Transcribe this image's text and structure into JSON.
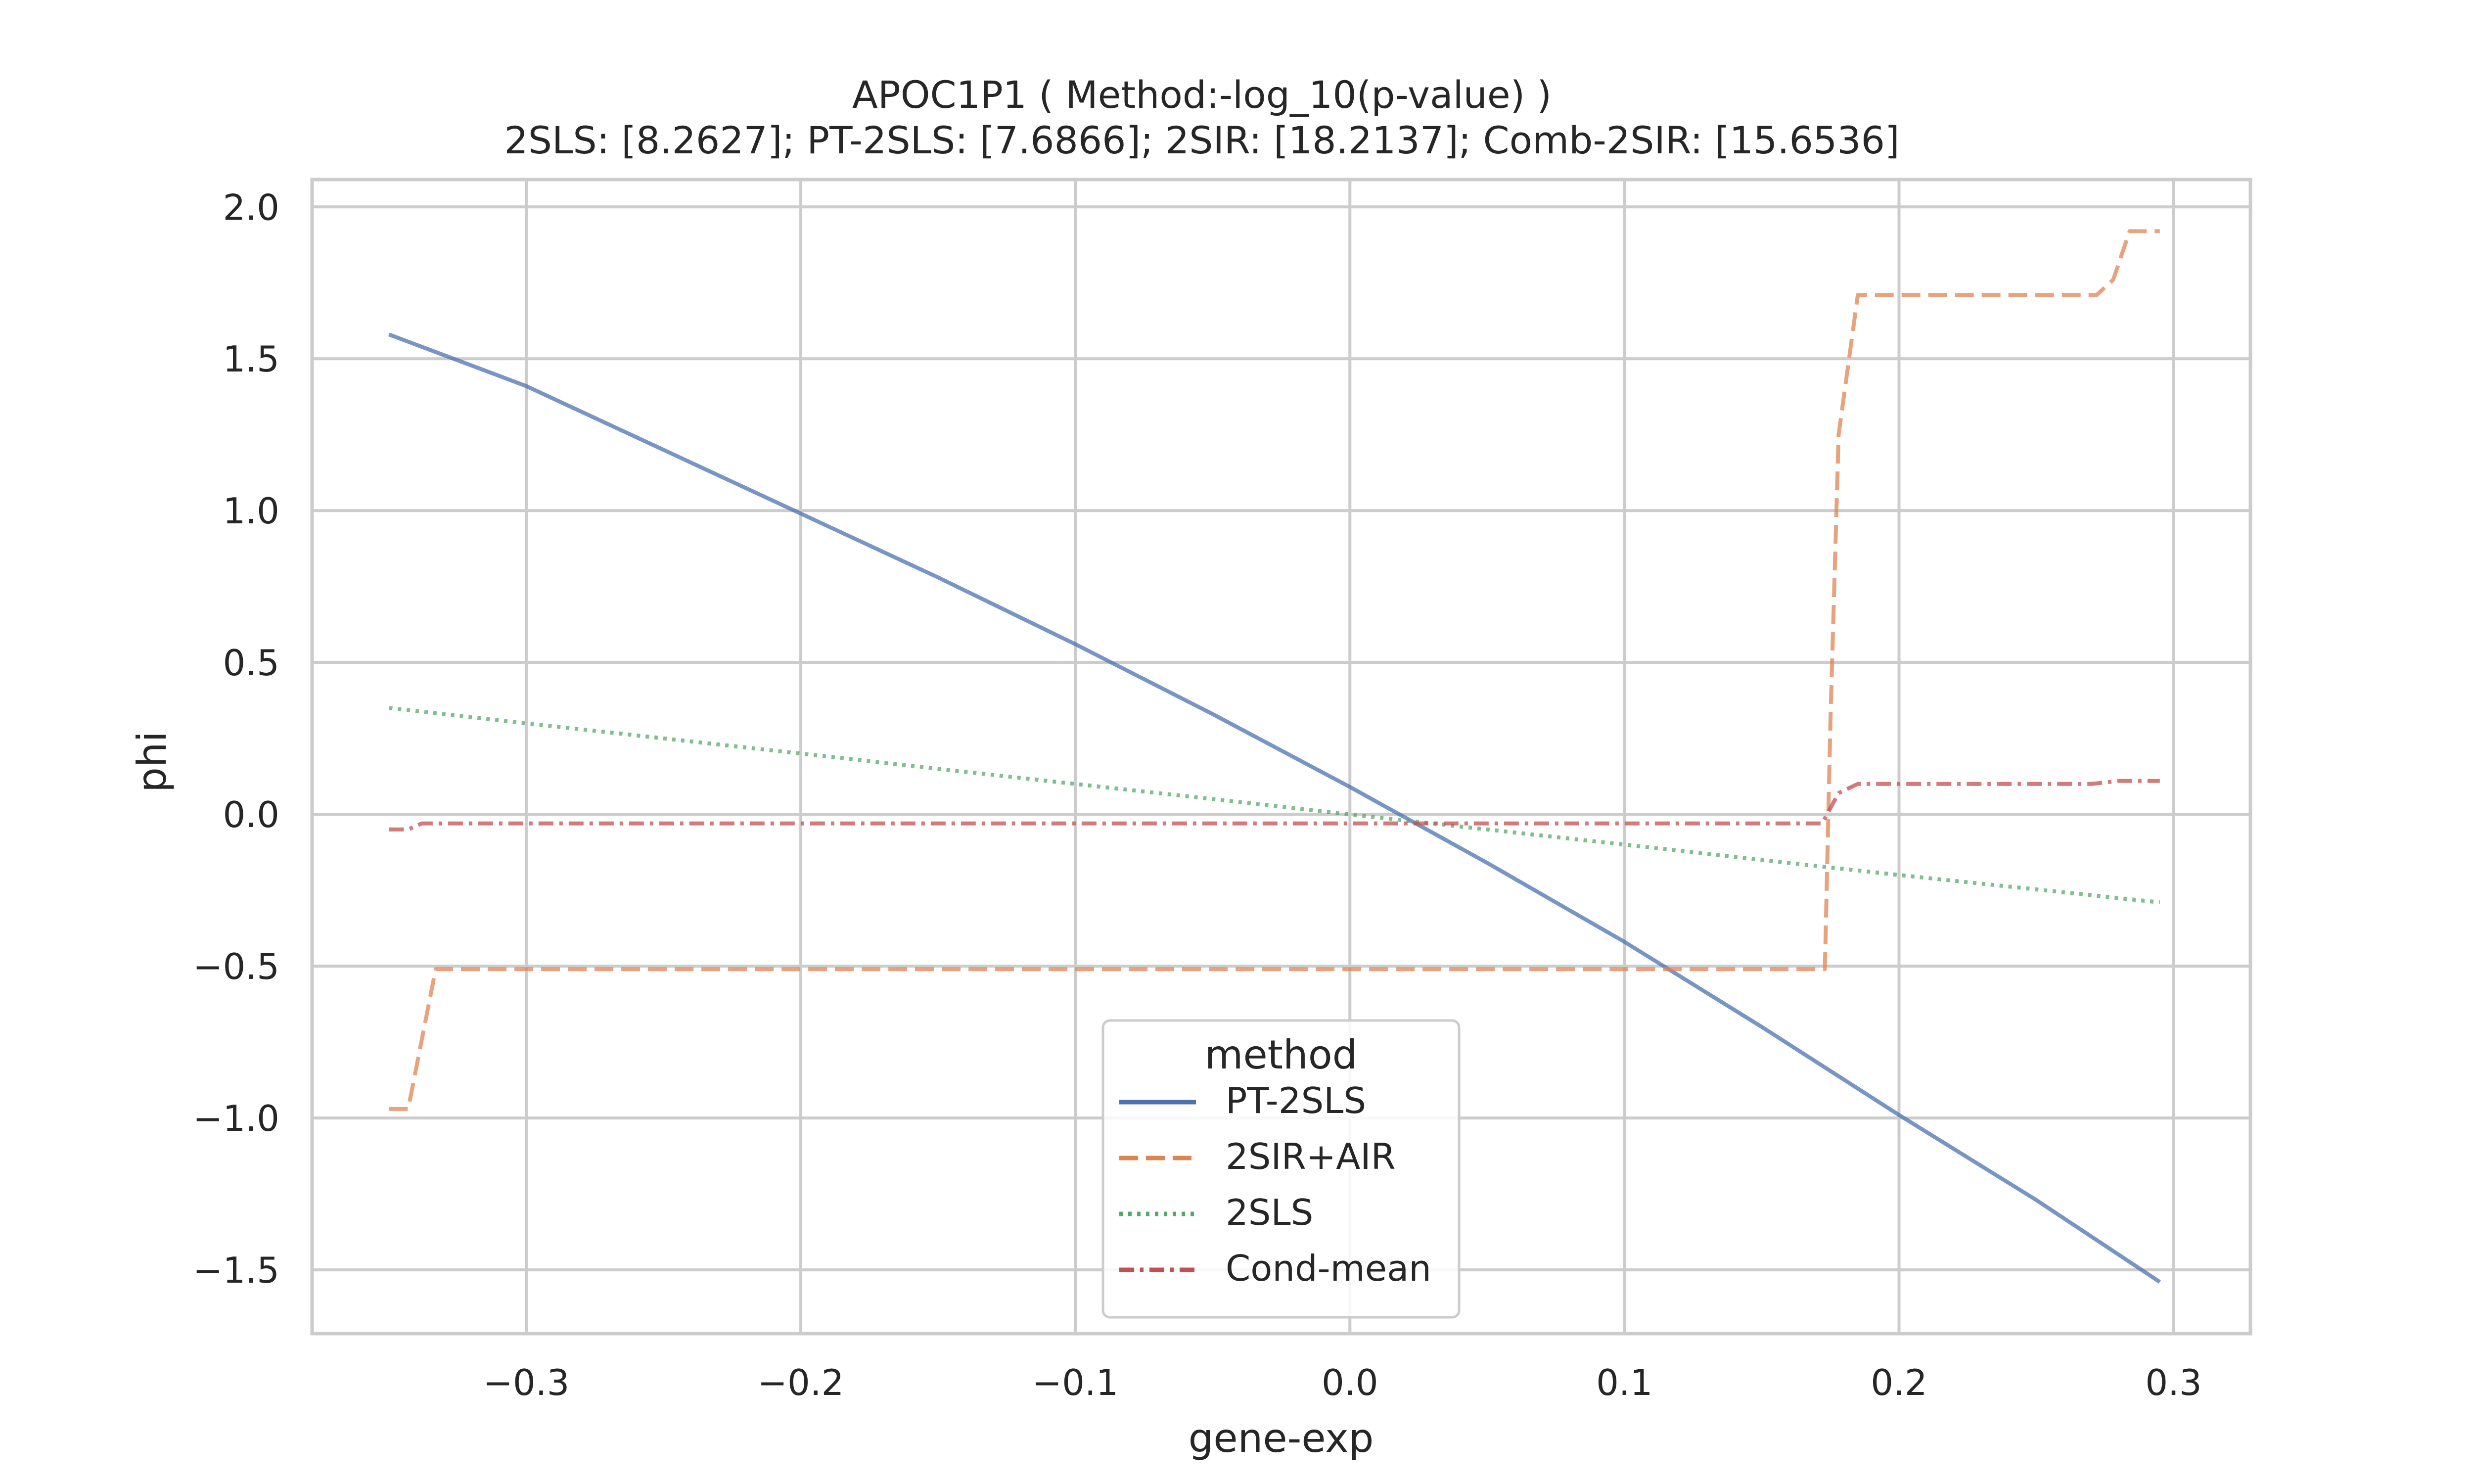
{
  "chart_data": {
    "type": "line",
    "title_line1": "APOC1P1 ( Method:-log_10(p-value) )",
    "title_line2": "2SLS: [8.2627]; PT-2SLS: [7.6866]; 2SIR: [18.2137]; Comb-2SIR: [15.6536]",
    "xlabel": "gene-exp",
    "ylabel": "phi",
    "xlim": [
      -0.378,
      0.328
    ],
    "ylim": [
      -1.71,
      2.09
    ],
    "xticks": [
      -0.3,
      -0.2,
      -0.1,
      0.0,
      0.1,
      0.2,
      0.3
    ],
    "xtick_labels": [
      "−0.3",
      "−0.2",
      "−0.1",
      "0.0",
      "0.1",
      "0.2",
      "0.3"
    ],
    "yticks": [
      2.0,
      1.5,
      1.0,
      0.5,
      0.0,
      -0.5,
      -1.0,
      -1.5
    ],
    "ytick_labels": [
      "2.0",
      "1.5",
      "1.0",
      "0.5",
      "0.0",
      "−0.5",
      "−1.0",
      "−1.5"
    ],
    "grid": true,
    "legend": {
      "title": "method",
      "placement": "bottom-center"
    },
    "series": [
      {
        "name": "PT-2SLS",
        "color": "#4c72b0",
        "dash": "solid",
        "x": [
          -0.35,
          -0.3,
          -0.25,
          -0.2,
          -0.15,
          -0.1,
          -0.05,
          0.0,
          0.05,
          0.1,
          0.15,
          0.2,
          0.25,
          0.295
        ],
        "y": [
          1.58,
          1.41,
          1.2,
          0.99,
          0.78,
          0.56,
          0.33,
          0.09,
          -0.16,
          -0.42,
          -0.7,
          -0.99,
          -1.27,
          -1.54
        ]
      },
      {
        "name": "2SIR+AIR",
        "color": "#dd8452",
        "dash": "dashed",
        "x": [
          -0.35,
          -0.343,
          -0.333,
          -0.2,
          0.0,
          0.1,
          0.173,
          0.175,
          0.178,
          0.185,
          0.25,
          0.272,
          0.278,
          0.284,
          0.295
        ],
        "y": [
          -0.97,
          -0.97,
          -0.51,
          -0.51,
          -0.51,
          -0.51,
          -0.51,
          0.3,
          1.25,
          1.71,
          1.71,
          1.71,
          1.76,
          1.92,
          1.92
        ]
      },
      {
        "name": "2SLS",
        "color": "#55a868",
        "dash": "dotted",
        "x": [
          -0.35,
          -0.3,
          -0.2,
          -0.1,
          0.0,
          0.1,
          0.2,
          0.295
        ],
        "y": [
          0.35,
          0.3,
          0.2,
          0.1,
          0.0,
          -0.1,
          -0.2,
          -0.29
        ]
      },
      {
        "name": "Cond-mean",
        "color": "#c44e52",
        "dash": "dashdot",
        "x": [
          -0.35,
          -0.343,
          -0.338,
          0.0,
          0.172,
          0.178,
          0.185,
          0.27,
          0.28,
          0.295
        ],
        "y": [
          -0.05,
          -0.05,
          -0.03,
          -0.03,
          -0.03,
          0.07,
          0.1,
          0.1,
          0.11,
          0.11
        ]
      }
    ]
  }
}
